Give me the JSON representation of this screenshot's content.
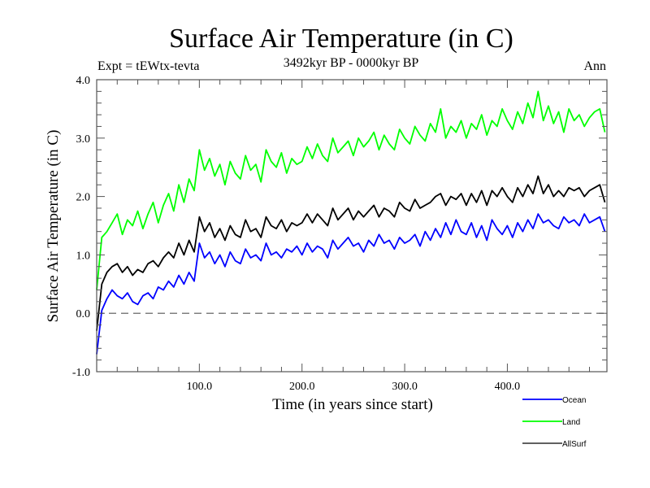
{
  "chart_data": {
    "type": "line",
    "title": "Surface Air Temperature (in C)",
    "subtitle_left": "Expt = tEWtx-tevta",
    "subtitle_center": "3492kyr BP - 0000kyr BP",
    "subtitle_right": "Ann",
    "xlabel": "Time (in years since start)",
    "ylabel": "Surface Air Temperature (in C)",
    "xlim": [
      0,
      497
    ],
    "ylim": [
      -1.0,
      4.0
    ],
    "x_ticks": [
      100,
      200,
      300,
      400
    ],
    "x_tick_labels": [
      "100.0",
      "200.0",
      "300.0",
      "400.0"
    ],
    "y_ticks": [
      -1.0,
      0.0,
      1.0,
      2.0,
      3.0,
      4.0
    ],
    "y_tick_labels": [
      "-1.0",
      "0.0",
      "1.0",
      "2.0",
      "3.0",
      "4.0"
    ],
    "reference_line": {
      "y": 0.0,
      "style": "dashed"
    },
    "grid": false,
    "legend_position": "bottom-right-outside",
    "x": [
      0,
      5,
      10,
      15,
      20,
      25,
      30,
      35,
      40,
      45,
      50,
      55,
      60,
      65,
      70,
      75,
      80,
      85,
      90,
      95,
      100,
      105,
      110,
      115,
      120,
      125,
      130,
      135,
      140,
      145,
      150,
      155,
      160,
      165,
      170,
      175,
      180,
      185,
      190,
      195,
      200,
      205,
      210,
      215,
      220,
      225,
      230,
      235,
      240,
      245,
      250,
      255,
      260,
      265,
      270,
      275,
      280,
      285,
      290,
      295,
      300,
      305,
      310,
      315,
      320,
      325,
      330,
      335,
      340,
      345,
      350,
      355,
      360,
      365,
      370,
      375,
      380,
      385,
      390,
      395,
      400,
      405,
      410,
      415,
      420,
      425,
      430,
      435,
      440,
      445,
      450,
      455,
      460,
      465,
      470,
      475,
      480,
      485,
      490,
      495
    ],
    "series": [
      {
        "name": "Ocean",
        "color": "#0000ff",
        "values": [
          -0.7,
          0.05,
          0.25,
          0.4,
          0.3,
          0.25,
          0.35,
          0.2,
          0.15,
          0.3,
          0.35,
          0.25,
          0.45,
          0.4,
          0.55,
          0.45,
          0.65,
          0.5,
          0.7,
          0.55,
          1.2,
          0.95,
          1.05,
          0.85,
          1.0,
          0.8,
          1.05,
          0.9,
          0.85,
          1.1,
          0.95,
          1.0,
          0.9,
          1.2,
          1.0,
          1.05,
          0.95,
          1.1,
          1.05,
          1.15,
          1.0,
          1.2,
          1.05,
          1.15,
          1.1,
          0.95,
          1.25,
          1.1,
          1.2,
          1.3,
          1.15,
          1.2,
          1.05,
          1.25,
          1.15,
          1.35,
          1.2,
          1.25,
          1.1,
          1.3,
          1.2,
          1.25,
          1.35,
          1.15,
          1.4,
          1.25,
          1.45,
          1.3,
          1.55,
          1.35,
          1.6,
          1.4,
          1.35,
          1.55,
          1.3,
          1.5,
          1.25,
          1.6,
          1.45,
          1.35,
          1.5,
          1.3,
          1.55,
          1.4,
          1.6,
          1.45,
          1.7,
          1.55,
          1.6,
          1.5,
          1.45,
          1.65,
          1.55,
          1.6,
          1.5,
          1.7,
          1.55,
          1.6,
          1.65,
          1.4
        ]
      },
      {
        "name": "Land",
        "color": "#00ff00",
        "values": [
          0.4,
          1.3,
          1.4,
          1.55,
          1.7,
          1.35,
          1.6,
          1.5,
          1.75,
          1.45,
          1.7,
          1.9,
          1.55,
          1.85,
          2.05,
          1.75,
          2.2,
          1.9,
          2.3,
          2.1,
          2.8,
          2.45,
          2.65,
          2.35,
          2.55,
          2.2,
          2.6,
          2.4,
          2.3,
          2.7,
          2.45,
          2.55,
          2.25,
          2.8,
          2.6,
          2.5,
          2.75,
          2.4,
          2.65,
          2.55,
          2.6,
          2.85,
          2.65,
          2.9,
          2.7,
          2.6,
          3.0,
          2.75,
          2.85,
          2.95,
          2.7,
          3.0,
          2.85,
          2.95,
          3.1,
          2.8,
          3.05,
          2.9,
          2.8,
          3.15,
          3.0,
          2.9,
          3.2,
          3.05,
          2.95,
          3.25,
          3.1,
          3.5,
          3.0,
          3.2,
          3.1,
          3.3,
          3.0,
          3.25,
          3.15,
          3.4,
          3.05,
          3.3,
          3.2,
          3.5,
          3.3,
          3.15,
          3.45,
          3.25,
          3.6,
          3.35,
          3.8,
          3.3,
          3.55,
          3.25,
          3.45,
          3.1,
          3.5,
          3.3,
          3.4,
          3.2,
          3.35,
          3.45,
          3.5,
          3.1
        ]
      },
      {
        "name": "AllSurf",
        "color": "#000000",
        "values": [
          -0.3,
          0.5,
          0.7,
          0.8,
          0.85,
          0.7,
          0.8,
          0.65,
          0.75,
          0.7,
          0.85,
          0.9,
          0.8,
          0.95,
          1.05,
          0.95,
          1.2,
          1.0,
          1.25,
          1.05,
          1.65,
          1.4,
          1.55,
          1.3,
          1.45,
          1.25,
          1.5,
          1.35,
          1.3,
          1.6,
          1.4,
          1.45,
          1.3,
          1.65,
          1.5,
          1.45,
          1.6,
          1.4,
          1.55,
          1.5,
          1.55,
          1.7,
          1.55,
          1.7,
          1.6,
          1.5,
          1.8,
          1.6,
          1.7,
          1.8,
          1.6,
          1.75,
          1.65,
          1.75,
          1.85,
          1.65,
          1.8,
          1.75,
          1.65,
          1.9,
          1.8,
          1.75,
          1.95,
          1.8,
          1.85,
          1.9,
          2.0,
          2.05,
          1.85,
          2.0,
          1.95,
          2.05,
          1.85,
          2.05,
          1.9,
          2.1,
          1.85,
          2.1,
          2.0,
          2.15,
          2.0,
          1.9,
          2.15,
          2.0,
          2.2,
          2.05,
          2.35,
          2.05,
          2.2,
          2.0,
          2.1,
          2.0,
          2.15,
          2.1,
          2.15,
          2.0,
          2.1,
          2.15,
          2.2,
          1.9
        ]
      }
    ]
  }
}
